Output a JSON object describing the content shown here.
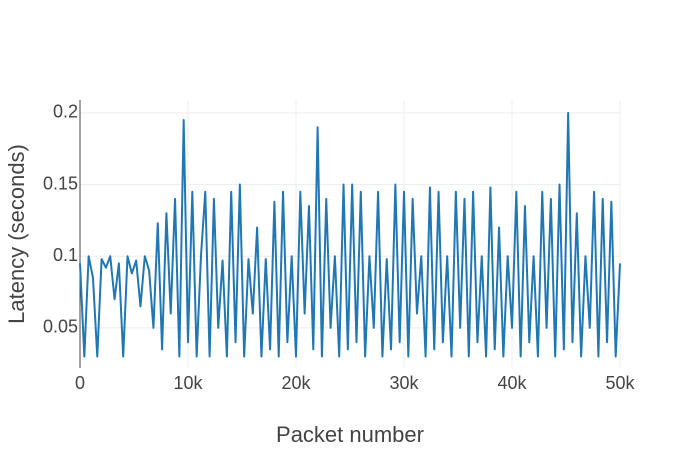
{
  "chart_data": {
    "type": "line",
    "x_label": "Packet number",
    "y_label": "Latency (seconds)",
    "xlim": [
      0,
      50000
    ],
    "ylim": [
      0.022,
      0.209
    ],
    "xticks": [
      0,
      {
        "value": 10000,
        "label": "10k"
      },
      {
        "value": 20000,
        "label": "20k"
      },
      {
        "value": 30000,
        "label": "30k"
      },
      {
        "value": 40000,
        "label": "40k"
      },
      {
        "value": 50000,
        "label": "50k"
      }
    ],
    "yticks": [
      0.05,
      0.1,
      0.15,
      0.2
    ],
    "grid": true,
    "x": [
      0,
      400,
      800,
      1200,
      1600,
      2000,
      2400,
      2800,
      3200,
      3600,
      4000,
      4400,
      4800,
      5200,
      5600,
      6000,
      6400,
      6800,
      7200,
      7600,
      8000,
      8400,
      8800,
      9200,
      9600,
      10000,
      10400,
      10800,
      11200,
      11600,
      12000,
      12400,
      12800,
      13200,
      13600,
      14000,
      14400,
      14800,
      15200,
      15600,
      16000,
      16400,
      16800,
      17200,
      17600,
      18000,
      18400,
      18800,
      19200,
      19600,
      20000,
      20400,
      20800,
      21200,
      21600,
      22000,
      22400,
      22800,
      23200,
      23600,
      24000,
      24400,
      24800,
      25200,
      25600,
      26000,
      26400,
      26800,
      27200,
      27600,
      28000,
      28400,
      28800,
      29200,
      29600,
      30000,
      30400,
      30800,
      31200,
      31600,
      32000,
      32400,
      32800,
      33200,
      33600,
      34000,
      34400,
      34800,
      35200,
      35600,
      36000,
      36400,
      36800,
      37200,
      37600,
      38000,
      38400,
      38800,
      39200,
      39600,
      40000,
      40400,
      40800,
      41200,
      41600,
      42000,
      42400,
      42800,
      43200,
      43600,
      44000,
      44400,
      44800,
      45200,
      45600,
      46000,
      46400,
      46800,
      47200,
      47600,
      48000,
      48400,
      48800,
      49200,
      49600,
      50000
    ],
    "series": [
      {
        "color": "#1f77b4",
        "values": [
          0.095,
          0.03,
          0.1,
          0.085,
          0.03,
          0.098,
          0.092,
          0.1,
          0.07,
          0.095,
          0.03,
          0.1,
          0.088,
          0.097,
          0.065,
          0.1,
          0.09,
          0.05,
          0.123,
          0.035,
          0.13,
          0.06,
          0.14,
          0.03,
          0.195,
          0.04,
          0.145,
          0.03,
          0.1,
          0.145,
          0.03,
          0.14,
          0.05,
          0.097,
          0.03,
          0.145,
          0.04,
          0.15,
          0.03,
          0.098,
          0.06,
          0.12,
          0.03,
          0.098,
          0.035,
          0.138,
          0.03,
          0.145,
          0.04,
          0.1,
          0.03,
          0.145,
          0.06,
          0.135,
          0.035,
          0.19,
          0.03,
          0.14,
          0.05,
          0.1,
          0.03,
          0.15,
          0.035,
          0.15,
          0.04,
          0.145,
          0.03,
          0.1,
          0.05,
          0.145,
          0.03,
          0.098,
          0.035,
          0.15,
          0.04,
          0.145,
          0.03,
          0.14,
          0.06,
          0.1,
          0.03,
          0.148,
          0.035,
          0.145,
          0.04,
          0.1,
          0.03,
          0.145,
          0.05,
          0.14,
          0.03,
          0.145,
          0.04,
          0.1,
          0.03,
          0.148,
          0.035,
          0.12,
          0.03,
          0.1,
          0.05,
          0.145,
          0.03,
          0.135,
          0.04,
          0.1,
          0.03,
          0.145,
          0.05,
          0.14,
          0.03,
          0.15,
          0.035,
          0.2,
          0.04,
          0.13,
          0.03,
          0.1,
          0.05,
          0.145,
          0.03,
          0.14,
          0.04,
          0.138,
          0.03,
          0.095
        ]
      }
    ]
  }
}
